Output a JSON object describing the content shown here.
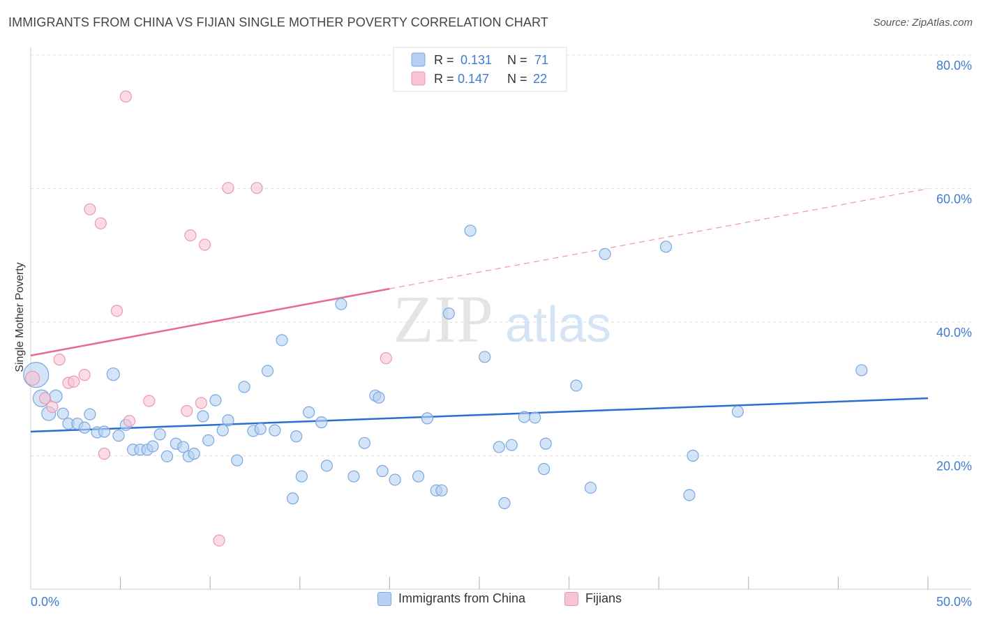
{
  "title": "IMMIGRANTS FROM CHINA VS FIJIAN SINGLE MOTHER POVERTY CORRELATION CHART",
  "source": "Source: ZipAtlas.com",
  "watermark": {
    "zip": "ZIP",
    "atlas": "atlas"
  },
  "colors": {
    "blue_fill": "#b6d1f3",
    "blue_stroke": "#7aa7dd",
    "blue_line": "#2a6fcd",
    "pink_fill": "#f8c3d2",
    "pink_stroke": "#e79ab0",
    "pink_line": "#e8688e",
    "axis_text": "#3f7bd0",
    "grid": "#dddddd"
  },
  "legend_top": {
    "rows": [
      {
        "r_label": "R =",
        "r_value": "0.131",
        "n_label": "N =",
        "n_value": "71"
      },
      {
        "r_label": "R =",
        "r_value": "0.147",
        "n_label": "N =",
        "n_value": "22"
      }
    ]
  },
  "legend_bottom": [
    "Immigrants from China",
    "Fijians"
  ],
  "chart_data": {
    "type": "scatter",
    "title": "IMMIGRANTS FROM CHINA VS FIJIAN SINGLE MOTHER POVERTY CORRELATION CHART",
    "xlabel": "",
    "ylabel": "Single Mother Poverty",
    "xlim": [
      0,
      50
    ],
    "ylim": [
      0,
      80
    ],
    "x_tick_labels": [
      "0.0%",
      "50.0%"
    ],
    "y_tick_labels": [
      "20.0%",
      "40.0%",
      "60.0%",
      "80.0%"
    ],
    "y_ticks": [
      20,
      40,
      60,
      80
    ],
    "grid": true,
    "legend_placement": "top-center",
    "series": [
      {
        "name": "Immigrants from China",
        "color": "#b6d1f3",
        "r": 0.131,
        "n": 71,
        "trend": {
          "x": [
            0,
            50
          ],
          "y": [
            23.6,
            28.6
          ]
        },
        "points": [
          [
            0.3,
            32.1,
            18
          ],
          [
            0.6,
            28.6,
            12
          ],
          [
            1.0,
            26.3,
            10
          ],
          [
            1.4,
            28.9,
            9
          ],
          [
            1.8,
            26.3,
            8
          ],
          [
            2.1,
            24.8,
            8
          ],
          [
            2.6,
            24.8,
            8
          ],
          [
            3.0,
            24.2,
            8
          ],
          [
            3.3,
            26.2,
            8
          ],
          [
            3.7,
            23.5,
            8
          ],
          [
            4.1,
            23.6,
            8
          ],
          [
            4.6,
            32.2,
            9
          ],
          [
            4.9,
            23.0,
            8
          ],
          [
            5.3,
            24.6,
            8
          ],
          [
            5.7,
            20.9,
            8
          ],
          [
            6.1,
            20.9,
            8
          ],
          [
            6.5,
            20.9,
            8
          ],
          [
            6.8,
            21.4,
            8
          ],
          [
            7.2,
            23.2,
            8
          ],
          [
            7.6,
            19.9,
            8
          ],
          [
            8.1,
            21.8,
            8
          ],
          [
            8.5,
            21.3,
            8
          ],
          [
            8.8,
            19.9,
            8
          ],
          [
            9.1,
            20.3,
            8
          ],
          [
            9.6,
            25.9,
            8
          ],
          [
            9.9,
            22.3,
            8
          ],
          [
            10.3,
            28.3,
            8
          ],
          [
            10.7,
            23.8,
            8
          ],
          [
            11.0,
            25.3,
            8
          ],
          [
            11.5,
            19.3,
            8
          ],
          [
            11.9,
            30.3,
            8
          ],
          [
            12.4,
            23.7,
            8
          ],
          [
            12.8,
            24.0,
            8
          ],
          [
            13.2,
            32.7,
            8
          ],
          [
            13.6,
            23.8,
            8
          ],
          [
            14.0,
            37.3,
            8
          ],
          [
            14.6,
            13.6,
            8
          ],
          [
            14.8,
            22.9,
            8
          ],
          [
            15.1,
            16.9,
            8
          ],
          [
            15.5,
            26.5,
            8
          ],
          [
            16.2,
            25.0,
            8
          ],
          [
            16.5,
            18.5,
            8
          ],
          [
            17.3,
            42.7,
            8
          ],
          [
            18.0,
            16.9,
            8
          ],
          [
            18.6,
            21.9,
            8
          ],
          [
            19.2,
            29.0,
            8
          ],
          [
            19.4,
            28.7,
            8
          ],
          [
            19.6,
            17.7,
            8
          ],
          [
            20.3,
            16.4,
            8
          ],
          [
            21.6,
            16.9,
            8
          ],
          [
            22.1,
            25.6,
            8
          ],
          [
            22.6,
            14.8,
            8
          ],
          [
            22.9,
            14.8,
            8
          ],
          [
            23.3,
            41.3,
            8
          ],
          [
            24.5,
            53.7,
            8
          ],
          [
            25.3,
            34.8,
            8
          ],
          [
            26.1,
            21.3,
            8
          ],
          [
            26.4,
            12.9,
            8
          ],
          [
            26.8,
            21.6,
            8
          ],
          [
            27.5,
            25.8,
            8
          ],
          [
            28.1,
            25.7,
            8
          ],
          [
            28.6,
            18.0,
            8
          ],
          [
            28.7,
            21.8,
            8
          ],
          [
            30.4,
            30.5,
            8
          ],
          [
            31.2,
            15.2,
            8
          ],
          [
            32.0,
            50.2,
            8
          ],
          [
            35.4,
            51.3,
            8
          ],
          [
            36.7,
            14.1,
            8
          ],
          [
            36.9,
            20.0,
            8
          ],
          [
            39.4,
            26.6,
            8
          ],
          [
            46.3,
            32.8,
            8
          ]
        ]
      },
      {
        "name": "Fijians",
        "color": "#f8c3d2",
        "r": 0.147,
        "n": 22,
        "trend": {
          "x": [
            0,
            20
          ],
          "y": [
            35.0,
            45.0
          ],
          "dashed_extension": {
            "x": [
              20,
              50
            ],
            "y": [
              45.0,
              60.0
            ]
          }
        },
        "points": [
          [
            0.1,
            31.6,
            10
          ],
          [
            0.8,
            28.6,
            8
          ],
          [
            1.2,
            27.3,
            8
          ],
          [
            1.6,
            34.4,
            8
          ],
          [
            2.1,
            30.9,
            8
          ],
          [
            2.4,
            31.1,
            8
          ],
          [
            3.0,
            32.1,
            8
          ],
          [
            3.3,
            56.9,
            8
          ],
          [
            3.9,
            54.8,
            8
          ],
          [
            4.1,
            20.3,
            8
          ],
          [
            4.8,
            41.7,
            8
          ],
          [
            5.3,
            73.8,
            8
          ],
          [
            5.5,
            25.2,
            8
          ],
          [
            6.6,
            28.2,
            8
          ],
          [
            8.7,
            26.7,
            8
          ],
          [
            8.9,
            53.0,
            8
          ],
          [
            9.5,
            27.9,
            8
          ],
          [
            9.7,
            51.6,
            8
          ],
          [
            10.5,
            7.3,
            8
          ],
          [
            11.0,
            60.1,
            8
          ],
          [
            12.6,
            60.1,
            8
          ],
          [
            19.8,
            34.6,
            8
          ]
        ]
      }
    ]
  }
}
